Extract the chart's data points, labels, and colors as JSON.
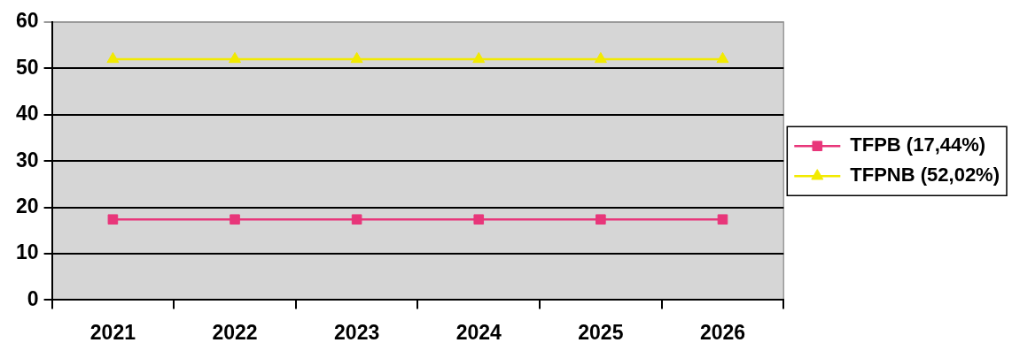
{
  "chart_data": {
    "type": "line",
    "categories": [
      "2021",
      "2022",
      "2023",
      "2024",
      "2025",
      "2026"
    ],
    "series": [
      {
        "name": "TFPB (17,44%)",
        "color": "#e8367a",
        "marker": "square",
        "values": [
          17.4,
          17.4,
          17.4,
          17.4,
          17.4,
          17.4
        ]
      },
      {
        "name": "TFPNB (52,02%)",
        "color": "#f2ea00",
        "marker": "triangle",
        "values": [
          52,
          52,
          52,
          52,
          52,
          52
        ]
      }
    ],
    "ylim": [
      0,
      60
    ],
    "yticks": [
      0,
      10,
      20,
      30,
      40,
      50,
      60
    ],
    "grid": "y",
    "legend": "right",
    "line_style": "solid"
  }
}
